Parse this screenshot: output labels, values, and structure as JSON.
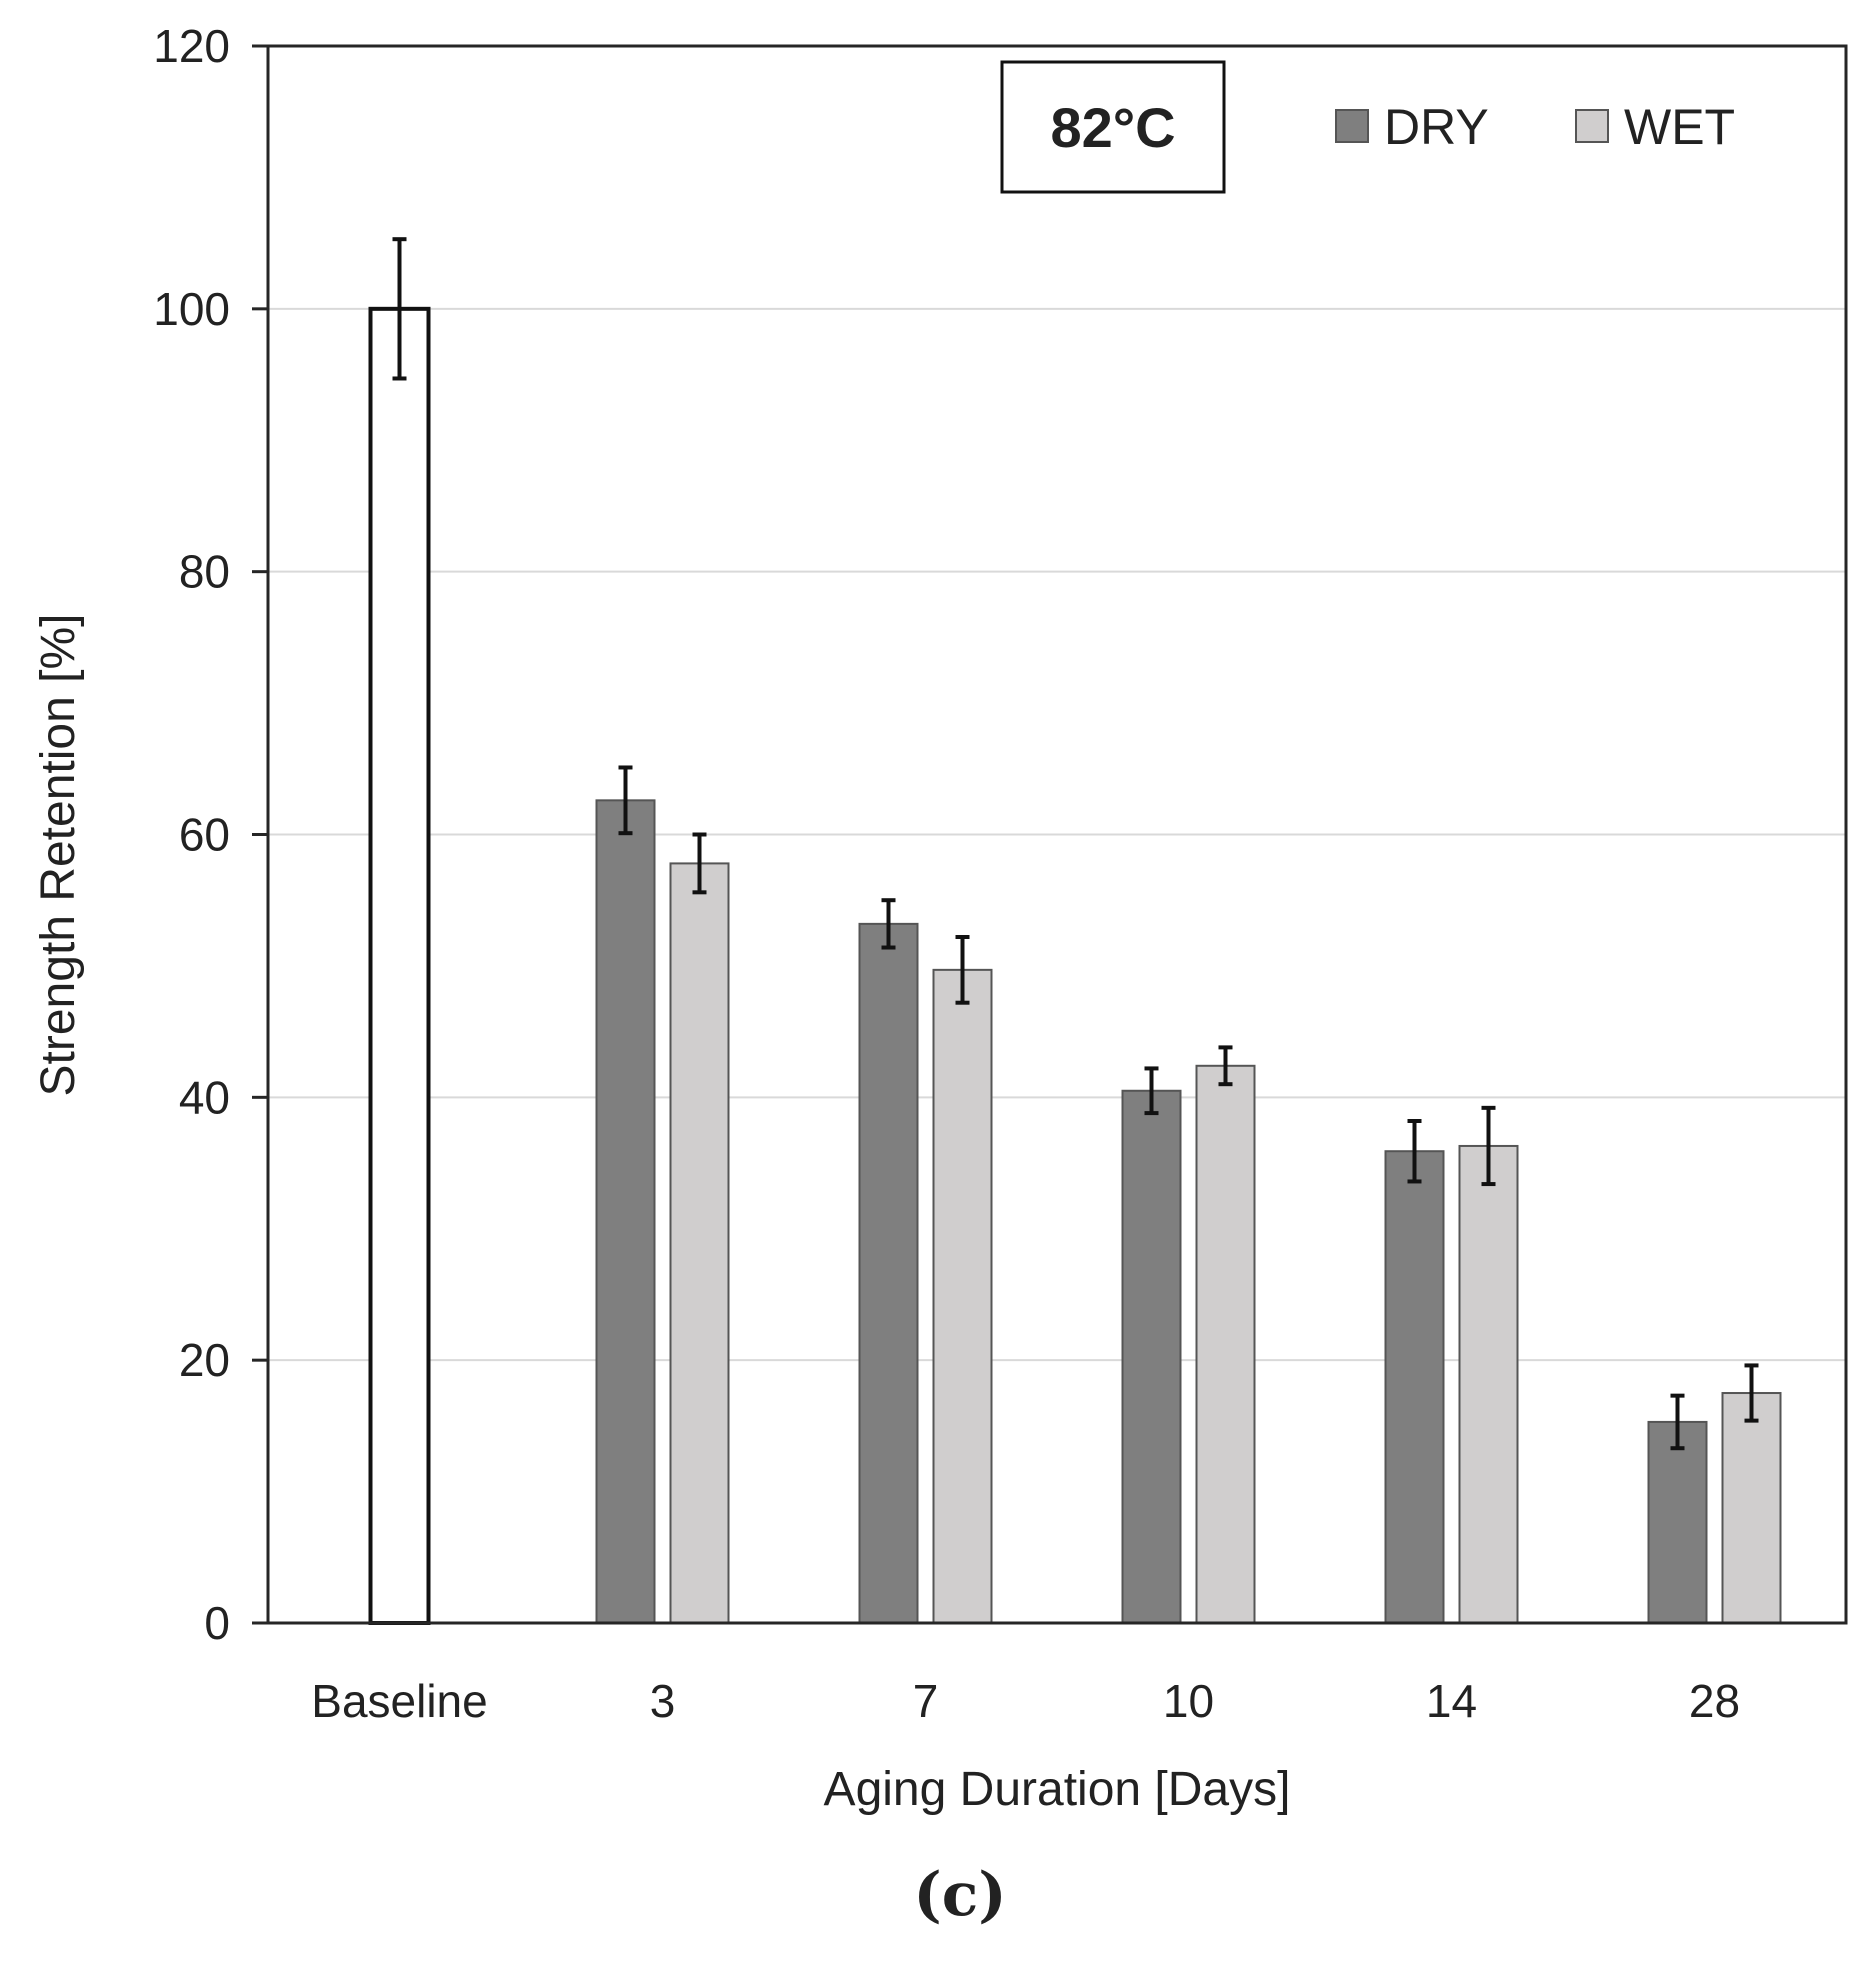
{
  "chart_data": {
    "type": "bar",
    "categories": [
      "Baseline",
      "3",
      "7",
      "10",
      "14",
      "28"
    ],
    "series": [
      {
        "name": "",
        "color": "#ffffff",
        "values": [
          100,
          null,
          null,
          null,
          null,
          null
        ],
        "errors": [
          5.3,
          null,
          null,
          null,
          null,
          null
        ]
      },
      {
        "name": "DRY",
        "color": "#7f7f7f",
        "values": [
          null,
          62.6,
          53.2,
          40.5,
          35.9,
          15.3
        ],
        "errors": [
          null,
          2.5,
          1.8,
          1.7,
          2.3,
          2.0
        ]
      },
      {
        "name": "WET",
        "color": "#d0cece",
        "values": [
          null,
          57.8,
          49.7,
          42.4,
          36.3,
          17.5
        ],
        "errors": [
          null,
          2.2,
          2.5,
          1.4,
          2.9,
          2.1
        ]
      }
    ],
    "xlabel": "Aging Duration [Days]",
    "ylabel": "Strength Retention [%]",
    "ylim": [
      0,
      120
    ],
    "yticks": [
      0,
      20,
      40,
      60,
      80,
      100,
      120
    ],
    "grid": true,
    "legend": {
      "placement": "top-right",
      "entries": [
        "DRY",
        "WET"
      ]
    },
    "annotation": "82°C",
    "panel_label": "(c)"
  }
}
